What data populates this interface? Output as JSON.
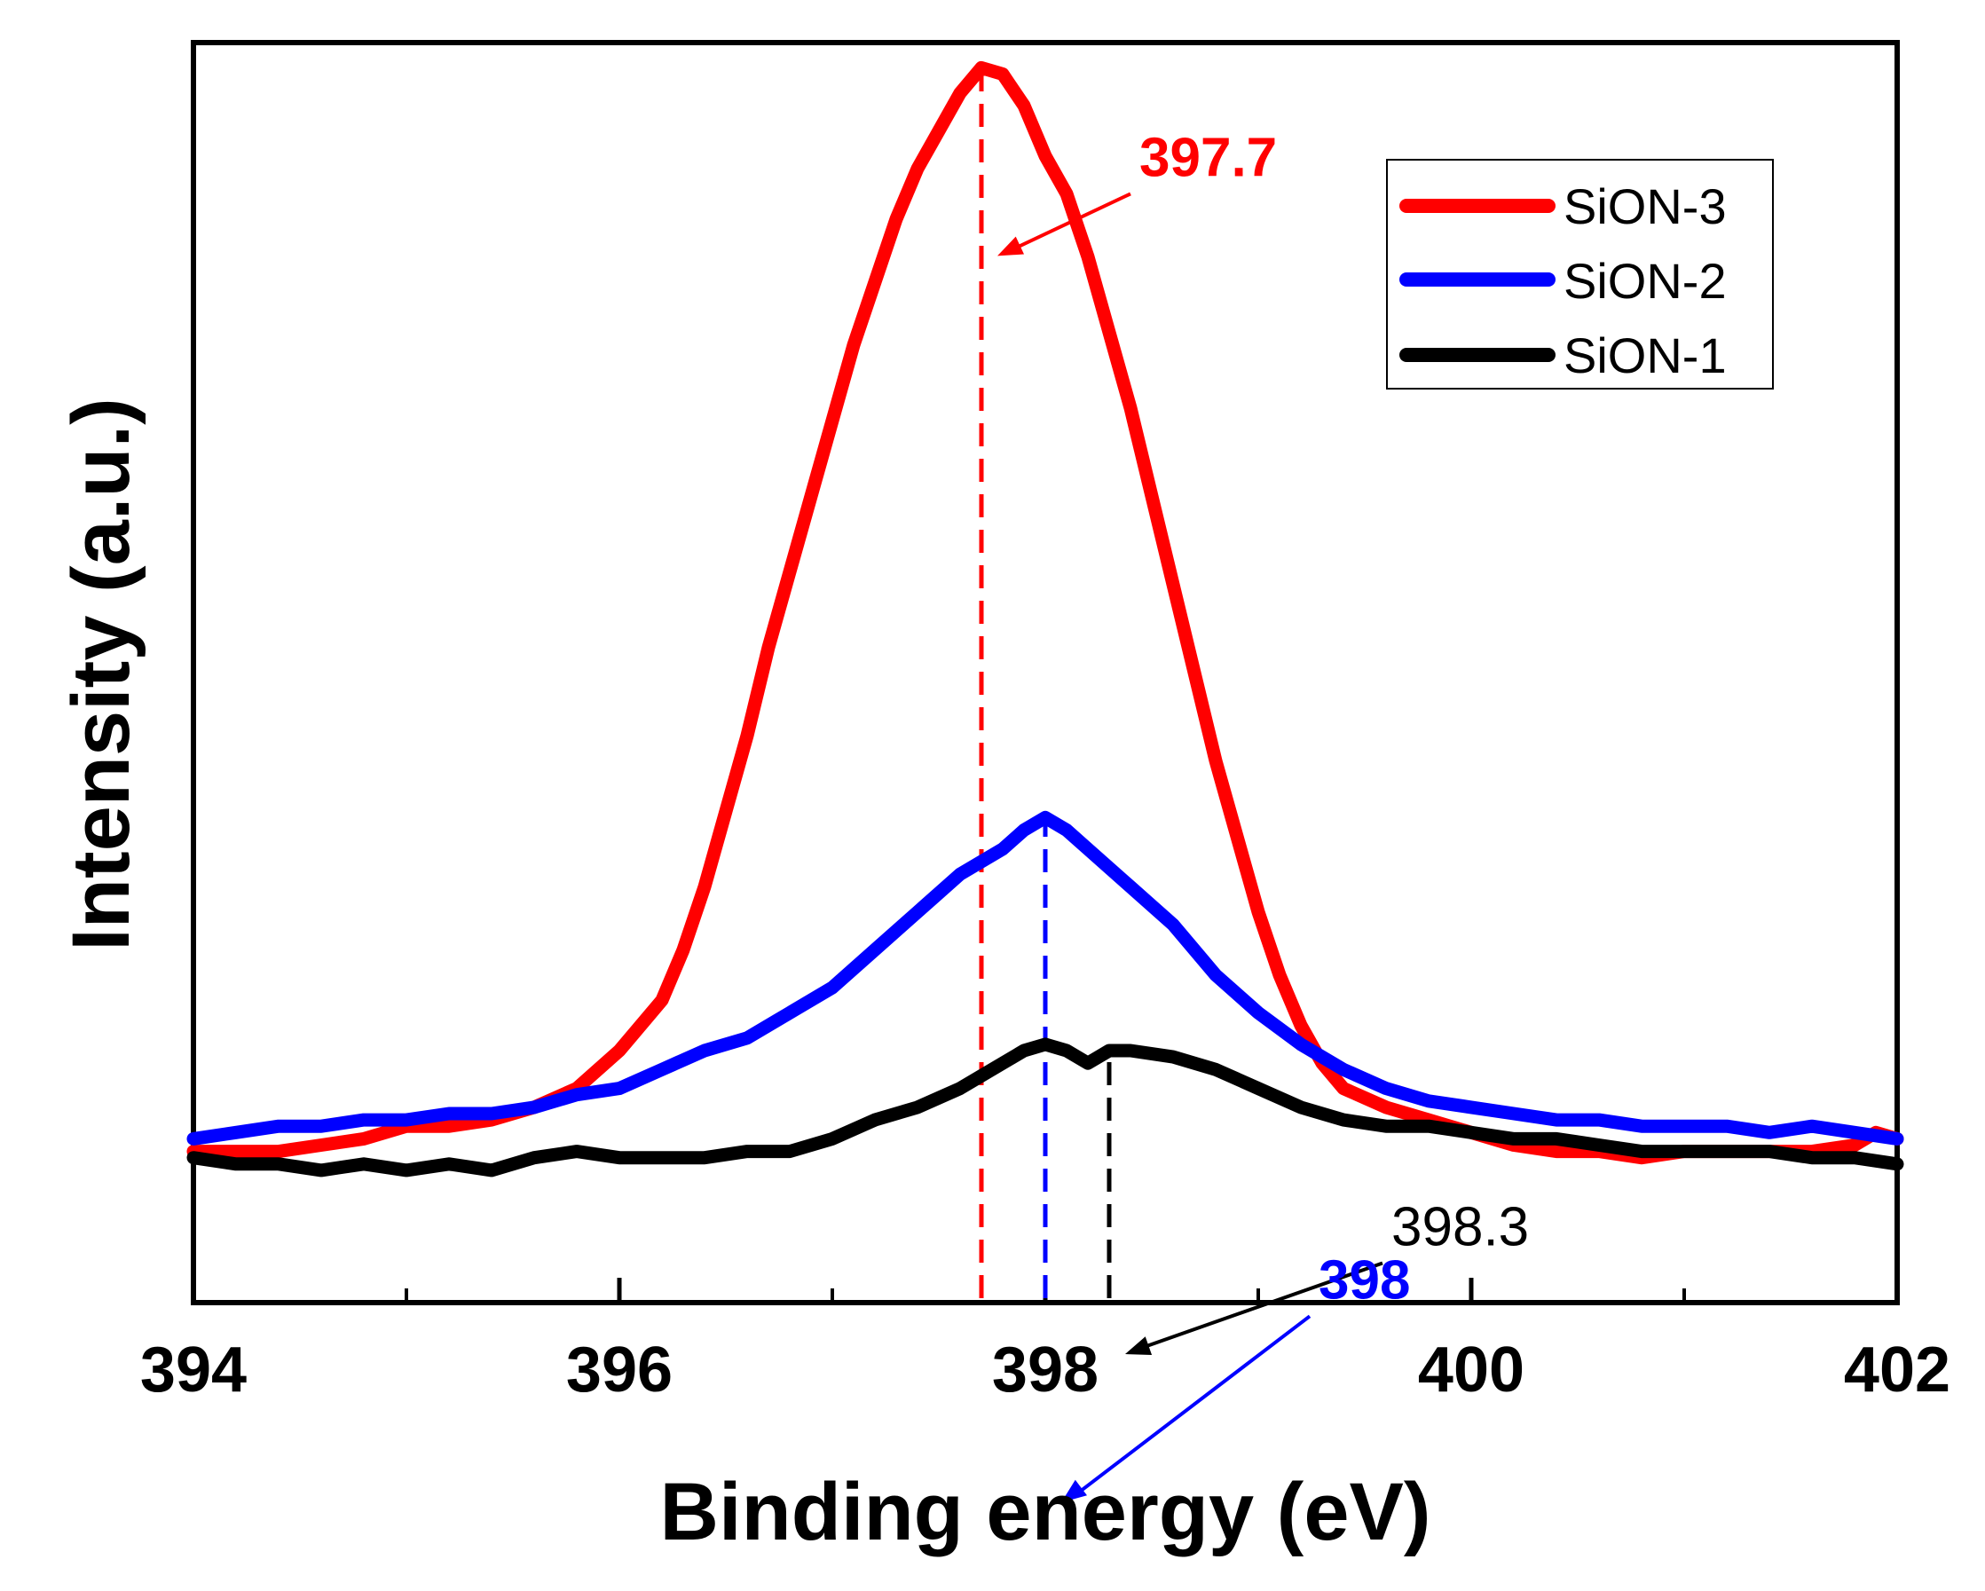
{
  "chart_data": {
    "type": "line",
    "title": "",
    "xlabel": "Binding energy (eV)",
    "ylabel": "Intensity (a.u.)",
    "xlim": [
      394,
      402
    ],
    "ylim": [
      0,
      1.0
    ],
    "xticks": [
      394,
      396,
      398,
      400,
      402
    ],
    "minor_xticks": [
      395,
      397,
      399,
      401
    ],
    "grid": false,
    "legend_position": "top-right",
    "series": [
      {
        "name": "SiON-3",
        "color": "#ff0000",
        "x": [
          394.0,
          394.2,
          394.4,
          394.6,
          394.8,
          395.0,
          395.2,
          395.4,
          395.6,
          395.8,
          396.0,
          396.2,
          396.3,
          396.4,
          396.5,
          396.6,
          396.7,
          396.8,
          396.9,
          397.0,
          397.1,
          397.2,
          397.3,
          397.4,
          397.5,
          397.6,
          397.7,
          397.8,
          397.9,
          398.0,
          398.1,
          398.2,
          398.3,
          398.4,
          398.5,
          398.6,
          398.7,
          398.8,
          398.9,
          399.0,
          399.1,
          399.2,
          399.3,
          399.4,
          399.6,
          399.8,
          400.0,
          400.2,
          400.4,
          400.6,
          400.8,
          401.0,
          401.2,
          401.4,
          401.6,
          401.8,
          401.9,
          402.0
        ],
        "y": [
          0.12,
          0.12,
          0.12,
          0.125,
          0.13,
          0.14,
          0.14,
          0.145,
          0.155,
          0.17,
          0.2,
          0.24,
          0.28,
          0.33,
          0.39,
          0.45,
          0.52,
          0.58,
          0.64,
          0.7,
          0.76,
          0.81,
          0.86,
          0.9,
          0.93,
          0.96,
          0.98,
          0.975,
          0.95,
          0.91,
          0.88,
          0.83,
          0.77,
          0.71,
          0.64,
          0.57,
          0.5,
          0.43,
          0.37,
          0.31,
          0.26,
          0.22,
          0.19,
          0.17,
          0.155,
          0.145,
          0.135,
          0.125,
          0.12,
          0.12,
          0.115,
          0.12,
          0.12,
          0.12,
          0.12,
          0.125,
          0.135,
          0.13
        ]
      },
      {
        "name": "SiON-2",
        "color": "#0000ff",
        "x": [
          394.0,
          394.2,
          394.4,
          394.6,
          394.8,
          395.0,
          395.2,
          395.4,
          395.6,
          395.8,
          396.0,
          396.2,
          396.4,
          396.6,
          396.8,
          397.0,
          397.2,
          397.4,
          397.6,
          397.8,
          397.9,
          398.0,
          398.1,
          398.2,
          398.4,
          398.6,
          398.8,
          399.0,
          399.2,
          399.4,
          399.6,
          399.8,
          400.0,
          400.2,
          400.4,
          400.6,
          400.8,
          401.0,
          401.2,
          401.4,
          401.6,
          401.8,
          402.0
        ],
        "y": [
          0.13,
          0.135,
          0.14,
          0.14,
          0.145,
          0.145,
          0.15,
          0.15,
          0.155,
          0.165,
          0.17,
          0.185,
          0.2,
          0.21,
          0.23,
          0.25,
          0.28,
          0.31,
          0.34,
          0.36,
          0.375,
          0.385,
          0.375,
          0.36,
          0.33,
          0.3,
          0.26,
          0.23,
          0.205,
          0.185,
          0.17,
          0.16,
          0.155,
          0.15,
          0.145,
          0.145,
          0.14,
          0.14,
          0.14,
          0.135,
          0.14,
          0.135,
          0.13
        ]
      },
      {
        "name": "SiON-1",
        "color": "#000000",
        "x": [
          394.0,
          394.2,
          394.4,
          394.6,
          394.8,
          395.0,
          395.2,
          395.4,
          395.6,
          395.8,
          396.0,
          396.2,
          396.4,
          396.6,
          396.8,
          397.0,
          397.2,
          397.4,
          397.6,
          397.8,
          397.9,
          398.0,
          398.1,
          398.2,
          398.3,
          398.4,
          398.6,
          398.8,
          399.0,
          399.2,
          399.4,
          399.6,
          399.8,
          400.0,
          400.2,
          400.4,
          400.6,
          400.8,
          401.0,
          401.2,
          401.4,
          401.6,
          401.8,
          402.0
        ],
        "y": [
          0.115,
          0.11,
          0.11,
          0.105,
          0.11,
          0.105,
          0.11,
          0.105,
          0.115,
          0.12,
          0.115,
          0.115,
          0.115,
          0.12,
          0.12,
          0.13,
          0.145,
          0.155,
          0.17,
          0.19,
          0.2,
          0.205,
          0.2,
          0.19,
          0.2,
          0.2,
          0.195,
          0.185,
          0.17,
          0.155,
          0.145,
          0.14,
          0.14,
          0.135,
          0.13,
          0.13,
          0.125,
          0.12,
          0.12,
          0.12,
          0.12,
          0.115,
          0.115,
          0.11
        ]
      }
    ],
    "annotations": [
      {
        "label": "397.7",
        "series": "SiON-3",
        "peak_x": 397.7,
        "peak_y": 0.98,
        "color": "#ff0000"
      },
      {
        "label": "398",
        "series": "SiON-2",
        "peak_x": 398.0,
        "peak_y": 0.385,
        "color": "#0000ff"
      },
      {
        "label": "398.3",
        "series": "SiON-1",
        "peak_x": 398.3,
        "peak_y": 0.2,
        "color": "#000000"
      }
    ]
  }
}
